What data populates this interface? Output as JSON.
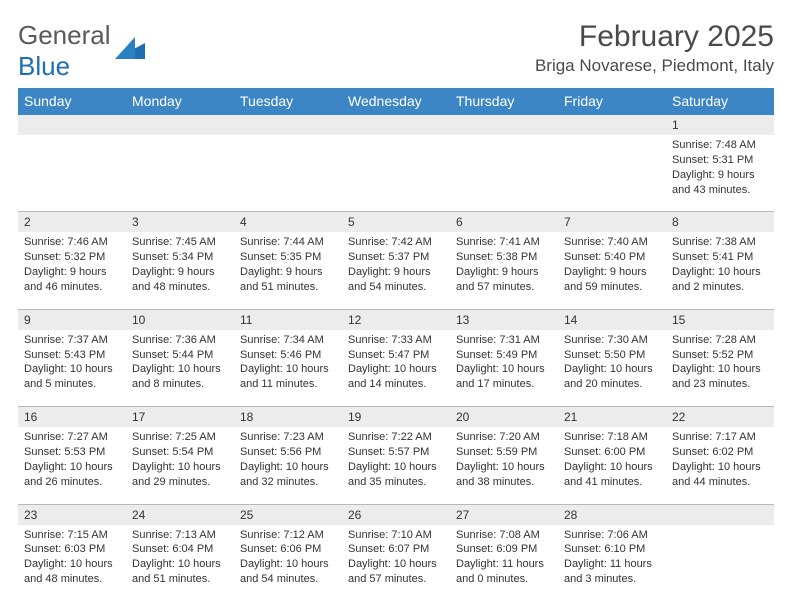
{
  "brand": {
    "name_general": "General",
    "name_blue": "Blue"
  },
  "header": {
    "title": "February 2025",
    "location": "Briga Novarese, Piedmont, Italy"
  },
  "colors": {
    "header_bg": "#3d86c6",
    "header_text": "#ffffff",
    "daynum_bg": "#ececec",
    "rule": "#b8b8b8",
    "brand_blue": "#1f6fb2",
    "brand_gray": "#5a5a5a"
  },
  "layout": {
    "columns": 7,
    "rows": 5,
    "first_day_column_index": 6
  },
  "weekdays": [
    "Sunday",
    "Monday",
    "Tuesday",
    "Wednesday",
    "Thursday",
    "Friday",
    "Saturday"
  ],
  "days": [
    {
      "n": "1",
      "sunrise": "Sunrise: 7:48 AM",
      "sunset": "Sunset: 5:31 PM",
      "daylight": "Daylight: 9 hours and 43 minutes."
    },
    {
      "n": "2",
      "sunrise": "Sunrise: 7:46 AM",
      "sunset": "Sunset: 5:32 PM",
      "daylight": "Daylight: 9 hours and 46 minutes."
    },
    {
      "n": "3",
      "sunrise": "Sunrise: 7:45 AM",
      "sunset": "Sunset: 5:34 PM",
      "daylight": "Daylight: 9 hours and 48 minutes."
    },
    {
      "n": "4",
      "sunrise": "Sunrise: 7:44 AM",
      "sunset": "Sunset: 5:35 PM",
      "daylight": "Daylight: 9 hours and 51 minutes."
    },
    {
      "n": "5",
      "sunrise": "Sunrise: 7:42 AM",
      "sunset": "Sunset: 5:37 PM",
      "daylight": "Daylight: 9 hours and 54 minutes."
    },
    {
      "n": "6",
      "sunrise": "Sunrise: 7:41 AM",
      "sunset": "Sunset: 5:38 PM",
      "daylight": "Daylight: 9 hours and 57 minutes."
    },
    {
      "n": "7",
      "sunrise": "Sunrise: 7:40 AM",
      "sunset": "Sunset: 5:40 PM",
      "daylight": "Daylight: 9 hours and 59 minutes."
    },
    {
      "n": "8",
      "sunrise": "Sunrise: 7:38 AM",
      "sunset": "Sunset: 5:41 PM",
      "daylight": "Daylight: 10 hours and 2 minutes."
    },
    {
      "n": "9",
      "sunrise": "Sunrise: 7:37 AM",
      "sunset": "Sunset: 5:43 PM",
      "daylight": "Daylight: 10 hours and 5 minutes."
    },
    {
      "n": "10",
      "sunrise": "Sunrise: 7:36 AM",
      "sunset": "Sunset: 5:44 PM",
      "daylight": "Daylight: 10 hours and 8 minutes."
    },
    {
      "n": "11",
      "sunrise": "Sunrise: 7:34 AM",
      "sunset": "Sunset: 5:46 PM",
      "daylight": "Daylight: 10 hours and 11 minutes."
    },
    {
      "n": "12",
      "sunrise": "Sunrise: 7:33 AM",
      "sunset": "Sunset: 5:47 PM",
      "daylight": "Daylight: 10 hours and 14 minutes."
    },
    {
      "n": "13",
      "sunrise": "Sunrise: 7:31 AM",
      "sunset": "Sunset: 5:49 PM",
      "daylight": "Daylight: 10 hours and 17 minutes."
    },
    {
      "n": "14",
      "sunrise": "Sunrise: 7:30 AM",
      "sunset": "Sunset: 5:50 PM",
      "daylight": "Daylight: 10 hours and 20 minutes."
    },
    {
      "n": "15",
      "sunrise": "Sunrise: 7:28 AM",
      "sunset": "Sunset: 5:52 PM",
      "daylight": "Daylight: 10 hours and 23 minutes."
    },
    {
      "n": "16",
      "sunrise": "Sunrise: 7:27 AM",
      "sunset": "Sunset: 5:53 PM",
      "daylight": "Daylight: 10 hours and 26 minutes."
    },
    {
      "n": "17",
      "sunrise": "Sunrise: 7:25 AM",
      "sunset": "Sunset: 5:54 PM",
      "daylight": "Daylight: 10 hours and 29 minutes."
    },
    {
      "n": "18",
      "sunrise": "Sunrise: 7:23 AM",
      "sunset": "Sunset: 5:56 PM",
      "daylight": "Daylight: 10 hours and 32 minutes."
    },
    {
      "n": "19",
      "sunrise": "Sunrise: 7:22 AM",
      "sunset": "Sunset: 5:57 PM",
      "daylight": "Daylight: 10 hours and 35 minutes."
    },
    {
      "n": "20",
      "sunrise": "Sunrise: 7:20 AM",
      "sunset": "Sunset: 5:59 PM",
      "daylight": "Daylight: 10 hours and 38 minutes."
    },
    {
      "n": "21",
      "sunrise": "Sunrise: 7:18 AM",
      "sunset": "Sunset: 6:00 PM",
      "daylight": "Daylight: 10 hours and 41 minutes."
    },
    {
      "n": "22",
      "sunrise": "Sunrise: 7:17 AM",
      "sunset": "Sunset: 6:02 PM",
      "daylight": "Daylight: 10 hours and 44 minutes."
    },
    {
      "n": "23",
      "sunrise": "Sunrise: 7:15 AM",
      "sunset": "Sunset: 6:03 PM",
      "daylight": "Daylight: 10 hours and 48 minutes."
    },
    {
      "n": "24",
      "sunrise": "Sunrise: 7:13 AM",
      "sunset": "Sunset: 6:04 PM",
      "daylight": "Daylight: 10 hours and 51 minutes."
    },
    {
      "n": "25",
      "sunrise": "Sunrise: 7:12 AM",
      "sunset": "Sunset: 6:06 PM",
      "daylight": "Daylight: 10 hours and 54 minutes."
    },
    {
      "n": "26",
      "sunrise": "Sunrise: 7:10 AM",
      "sunset": "Sunset: 6:07 PM",
      "daylight": "Daylight: 10 hours and 57 minutes."
    },
    {
      "n": "27",
      "sunrise": "Sunrise: 7:08 AM",
      "sunset": "Sunset: 6:09 PM",
      "daylight": "Daylight: 11 hours and 0 minutes."
    },
    {
      "n": "28",
      "sunrise": "Sunrise: 7:06 AM",
      "sunset": "Sunset: 6:10 PM",
      "daylight": "Daylight: 11 hours and 3 minutes."
    }
  ]
}
